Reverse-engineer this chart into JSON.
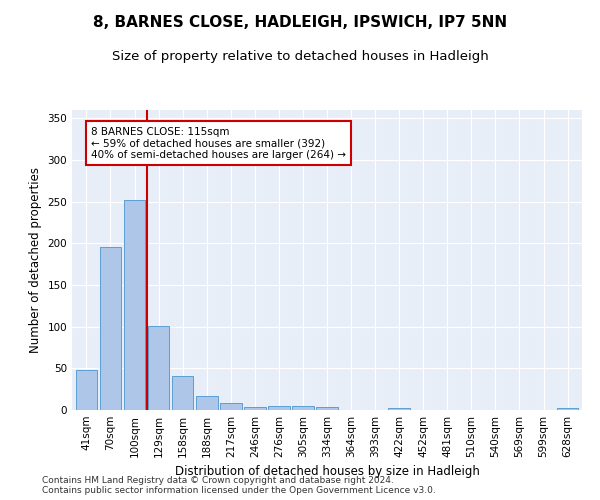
{
  "title": "8, BARNES CLOSE, HADLEIGH, IPSWICH, IP7 5NN",
  "subtitle": "Size of property relative to detached houses in Hadleigh",
  "xlabel": "Distribution of detached houses by size in Hadleigh",
  "ylabel": "Number of detached properties",
  "categories": [
    "41sqm",
    "70sqm",
    "100sqm",
    "129sqm",
    "158sqm",
    "188sqm",
    "217sqm",
    "246sqm",
    "276sqm",
    "305sqm",
    "334sqm",
    "364sqm",
    "393sqm",
    "422sqm",
    "452sqm",
    "481sqm",
    "510sqm",
    "540sqm",
    "569sqm",
    "599sqm",
    "628sqm"
  ],
  "values": [
    48,
    196,
    252,
    101,
    41,
    17,
    9,
    4,
    5,
    5,
    4,
    0,
    0,
    3,
    0,
    0,
    0,
    0,
    0,
    0,
    2
  ],
  "bar_color": "#aec6e8",
  "bar_edge_color": "#5a9fd4",
  "background_color": "#e8eef8",
  "vline_x": 2.5,
  "vline_color": "#cc0000",
  "annotation_text": "8 BARNES CLOSE: 115sqm\n← 59% of detached houses are smaller (392)\n40% of semi-detached houses are larger (264) →",
  "annotation_box_color": "#cc0000",
  "ylim": [
    0,
    360
  ],
  "yticks": [
    0,
    50,
    100,
    150,
    200,
    250,
    300,
    350
  ],
  "footer": "Contains HM Land Registry data © Crown copyright and database right 2024.\nContains public sector information licensed under the Open Government Licence v3.0.",
  "title_fontsize": 11,
  "subtitle_fontsize": 9.5,
  "axis_label_fontsize": 8.5,
  "tick_fontsize": 7.5,
  "footer_fontsize": 6.5
}
